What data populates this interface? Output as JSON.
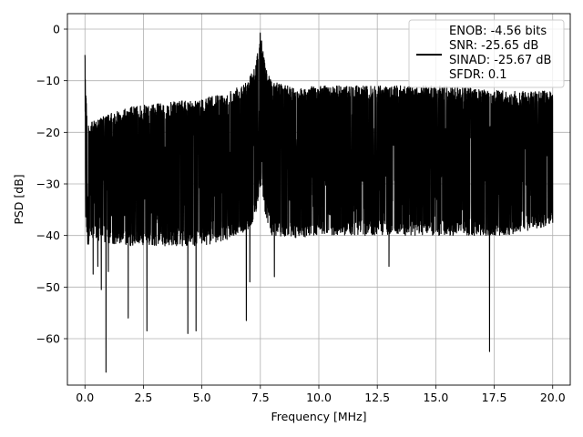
{
  "chart_data": {
    "type": "line",
    "title": "",
    "xlabel": "Frequency [MHz]",
    "ylabel": "PSD [dB]",
    "xlim": [
      -0.75,
      20.75
    ],
    "ylim": [
      -69,
      3
    ],
    "x_ticks": [
      0.0,
      2.5,
      5.0,
      7.5,
      10.0,
      12.5,
      15.0,
      17.5,
      20.0
    ],
    "x_tick_labels": [
      "0.0",
      "2.5",
      "5.0",
      "7.5",
      "10.0",
      "12.5",
      "15.0",
      "17.5",
      "20.0"
    ],
    "y_ticks": [
      0,
      -10,
      -20,
      -30,
      -40,
      -50,
      -60
    ],
    "y_tick_labels": [
      "0",
      "−10",
      "−20",
      "−30",
      "−40",
      "−50",
      "−60"
    ],
    "grid": true,
    "legend_position": "top-right",
    "series": [
      {
        "color": "#000000",
        "profile": {
          "x": [
            0.0,
            0.05,
            0.1,
            0.3,
            1.0,
            2.0,
            3.0,
            4.0,
            5.0,
            6.0,
            7.0,
            7.3,
            7.5,
            7.7,
            8.0,
            9.0,
            10.0,
            12.0,
            14.0,
            16.0,
            18.0,
            20.0
          ],
          "upper": [
            -5.0,
            -12.0,
            -18.5,
            -18.0,
            -16.5,
            -15.0,
            -14.5,
            -14.0,
            -13.5,
            -12.5,
            -9.5,
            -7.0,
            0.0,
            -7.0,
            -10.0,
            -11.5,
            -11.0,
            -11.0,
            -11.0,
            -11.0,
            -12.0,
            -12.0
          ],
          "lower": [
            -35.0,
            -38.0,
            -42.0,
            -41.0,
            -41.5,
            -42.0,
            -42.0,
            -42.0,
            -42.0,
            -41.0,
            -39.0,
            -36.0,
            -30.0,
            -36.0,
            -40.0,
            -40.5,
            -40.0,
            -40.0,
            -40.0,
            -40.0,
            -40.0,
            -38.0
          ]
        },
        "dips": [
          {
            "x": 0.35,
            "y": -47.5
          },
          {
            "x": 0.55,
            "y": -46.0
          },
          {
            "x": 0.9,
            "y": -66.5
          },
          {
            "x": 1.0,
            "y": -47.0
          },
          {
            "x": 1.85,
            "y": -56.0
          },
          {
            "x": 2.65,
            "y": -58.5
          },
          {
            "x": 4.4,
            "y": -59.0
          },
          {
            "x": 4.75,
            "y": -58.5
          },
          {
            "x": 6.9,
            "y": -56.5
          },
          {
            "x": 8.1,
            "y": -48.0
          },
          {
            "x": 13.0,
            "y": -46.0
          },
          {
            "x": 17.3,
            "y": -62.5
          },
          {
            "x": 7.05,
            "y": -49.0
          },
          {
            "x": 0.7,
            "y": -50.5
          }
        ]
      }
    ],
    "legend": [
      "ENOB: -4.56 bits",
      "SNR: -25.65 dB",
      "SINAD: -25.67 dB",
      "SFDR: 0.1"
    ]
  }
}
